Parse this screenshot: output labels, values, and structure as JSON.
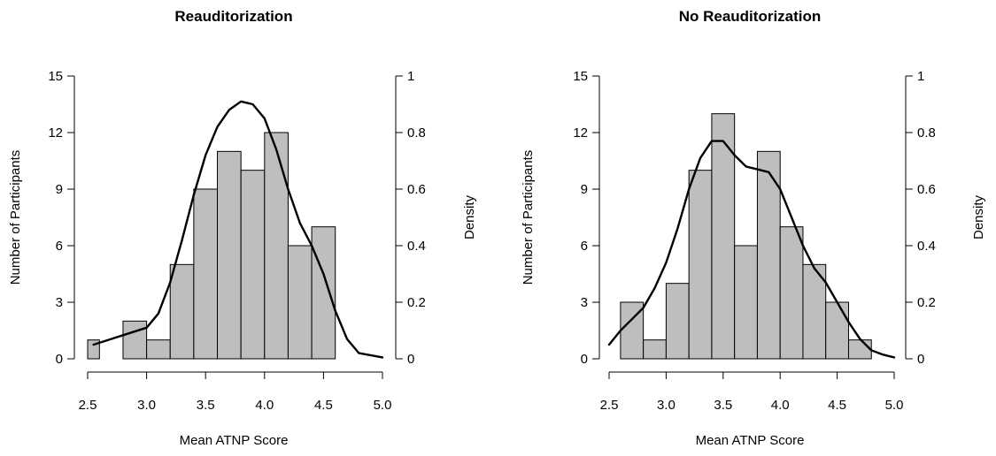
{
  "chart_data": [
    {
      "type": "bar",
      "title": "Reauditorization",
      "xlabel": "Mean ATNP Score",
      "ylabel": "Number of Participants",
      "y2label": "Density",
      "bar_color": "#bebebe",
      "xlim": [
        2.5,
        5.0
      ],
      "xticks": [
        "2.5",
        "3.0",
        "3.5",
        "4.0",
        "4.5",
        "5.0"
      ],
      "ylim": [
        0,
        15
      ],
      "yticks": [
        "0",
        "3",
        "6",
        "9",
        "12",
        "15"
      ],
      "y2lim": [
        0,
        1
      ],
      "y2ticks": [
        "0",
        "0.2",
        "0.4",
        "0.6",
        "0.8",
        "1"
      ],
      "bins": [
        {
          "start": 2.5,
          "end": 2.6,
          "count": 1
        },
        {
          "start": 2.8,
          "end": 3.0,
          "count": 2
        },
        {
          "start": 3.0,
          "end": 3.2,
          "count": 1
        },
        {
          "start": 3.2,
          "end": 3.4,
          "count": 5
        },
        {
          "start": 3.4,
          "end": 3.6,
          "count": 9
        },
        {
          "start": 3.6,
          "end": 3.8,
          "count": 11
        },
        {
          "start": 3.8,
          "end": 4.0,
          "count": 10
        },
        {
          "start": 4.0,
          "end": 4.2,
          "count": 12
        },
        {
          "start": 4.2,
          "end": 4.4,
          "count": 6
        },
        {
          "start": 4.4,
          "end": 4.6,
          "count": 7
        }
      ],
      "density": {
        "x": [
          2.55,
          2.7,
          2.85,
          3.0,
          3.1,
          3.2,
          3.3,
          3.4,
          3.5,
          3.6,
          3.7,
          3.8,
          3.9,
          4.0,
          4.1,
          4.2,
          4.3,
          4.4,
          4.5,
          4.6,
          4.7,
          4.8,
          5.0
        ],
        "y": [
          0.05,
          0.07,
          0.09,
          0.11,
          0.16,
          0.27,
          0.42,
          0.58,
          0.72,
          0.82,
          0.88,
          0.91,
          0.9,
          0.85,
          0.74,
          0.6,
          0.48,
          0.4,
          0.3,
          0.17,
          0.07,
          0.02,
          0.005
        ]
      }
    },
    {
      "type": "bar",
      "title": "No Reauditorization",
      "xlabel": "Mean ATNP Score",
      "ylabel": "Number of Participants",
      "y2label": "Density",
      "bar_color": "#bebebe",
      "xlim": [
        2.5,
        5.0
      ],
      "xticks": [
        "2.5",
        "3.0",
        "3.5",
        "4.0",
        "4.5",
        "5.0"
      ],
      "ylim": [
        0,
        15
      ],
      "yticks": [
        "0",
        "3",
        "6",
        "9",
        "12",
        "15"
      ],
      "y2lim": [
        0,
        1
      ],
      "y2ticks": [
        "0",
        "0.2",
        "0.4",
        "0.6",
        "0.8",
        "1"
      ],
      "bins": [
        {
          "start": 2.6,
          "end": 2.8,
          "count": 3
        },
        {
          "start": 2.8,
          "end": 3.0,
          "count": 1
        },
        {
          "start": 3.0,
          "end": 3.2,
          "count": 4
        },
        {
          "start": 3.2,
          "end": 3.4,
          "count": 10
        },
        {
          "start": 3.4,
          "end": 3.6,
          "count": 13
        },
        {
          "start": 3.6,
          "end": 3.8,
          "count": 6
        },
        {
          "start": 3.8,
          "end": 4.0,
          "count": 11
        },
        {
          "start": 4.0,
          "end": 4.2,
          "count": 7
        },
        {
          "start": 4.2,
          "end": 4.4,
          "count": 5
        },
        {
          "start": 4.4,
          "end": 4.6,
          "count": 3
        },
        {
          "start": 4.6,
          "end": 4.8,
          "count": 1
        }
      ],
      "density": {
        "x": [
          2.5,
          2.6,
          2.7,
          2.8,
          2.9,
          3.0,
          3.1,
          3.2,
          3.3,
          3.4,
          3.5,
          3.6,
          3.7,
          3.8,
          3.9,
          4.0,
          4.1,
          4.2,
          4.3,
          4.4,
          4.5,
          4.6,
          4.7,
          4.8,
          4.9,
          5.0
        ],
        "y": [
          0.05,
          0.1,
          0.14,
          0.18,
          0.25,
          0.34,
          0.46,
          0.6,
          0.71,
          0.77,
          0.77,
          0.72,
          0.68,
          0.67,
          0.66,
          0.6,
          0.5,
          0.4,
          0.32,
          0.27,
          0.2,
          0.13,
          0.07,
          0.03,
          0.015,
          0.005
        ]
      }
    }
  ]
}
